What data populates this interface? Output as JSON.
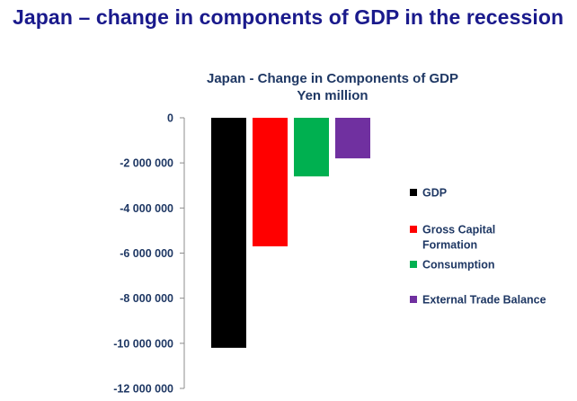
{
  "slide_title": "Japan – change in components of GDP in the recession",
  "chart_data": {
    "type": "bar",
    "title": [
      "Japan - Change in Components of GDP",
      "Yen million"
    ],
    "xlabel": "",
    "ylabel": "",
    "ylim": [
      -12000000,
      0
    ],
    "yticks": [
      0,
      -2000000,
      -4000000,
      -6000000,
      -8000000,
      -10000000,
      -12000000
    ],
    "ytick_labels": [
      "0",
      "-2 000 000",
      "-4 000 000",
      "-6 000 000",
      "-8 000 000",
      "-10 000 000",
      "-12 000 000"
    ],
    "grid": false,
    "legend_position": "right",
    "series": [
      {
        "name": "GDP",
        "value": -10200000,
        "color": "#000000",
        "legend_lines": [
          "GDP"
        ]
      },
      {
        "name": "Gross Capital Formation",
        "value": -5700000,
        "color": "#ff0000",
        "legend_lines": [
          "Gross Capital",
          "Formation"
        ]
      },
      {
        "name": "Consumption",
        "value": -2600000,
        "color": "#00b050",
        "legend_lines": [
          "Consumption"
        ]
      },
      {
        "name": "External Trade Balance",
        "value": -1800000,
        "color": "#7030a0",
        "legend_lines": [
          "External Trade Balance"
        ]
      }
    ]
  }
}
